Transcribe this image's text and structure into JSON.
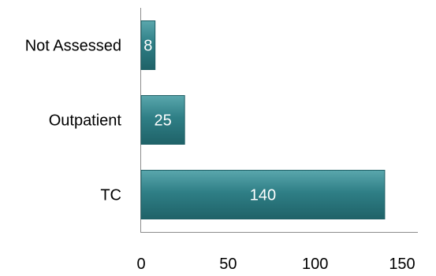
{
  "chart_data": {
    "type": "bar",
    "orientation": "horizontal",
    "categories": [
      "TC",
      "Outpatient",
      "Not Assessed"
    ],
    "values": [
      140,
      25,
      8
    ],
    "data_labels": [
      "140",
      "25",
      "8"
    ],
    "x_ticks": [
      "0",
      "50",
      "100",
      "150"
    ],
    "xlim": [
      0,
      150
    ],
    "title": "",
    "xlabel": "",
    "ylabel": "",
    "grid": false,
    "legend": "none",
    "bar_color": "#2f7f86",
    "bar_edge_color": "#1f5f65"
  }
}
